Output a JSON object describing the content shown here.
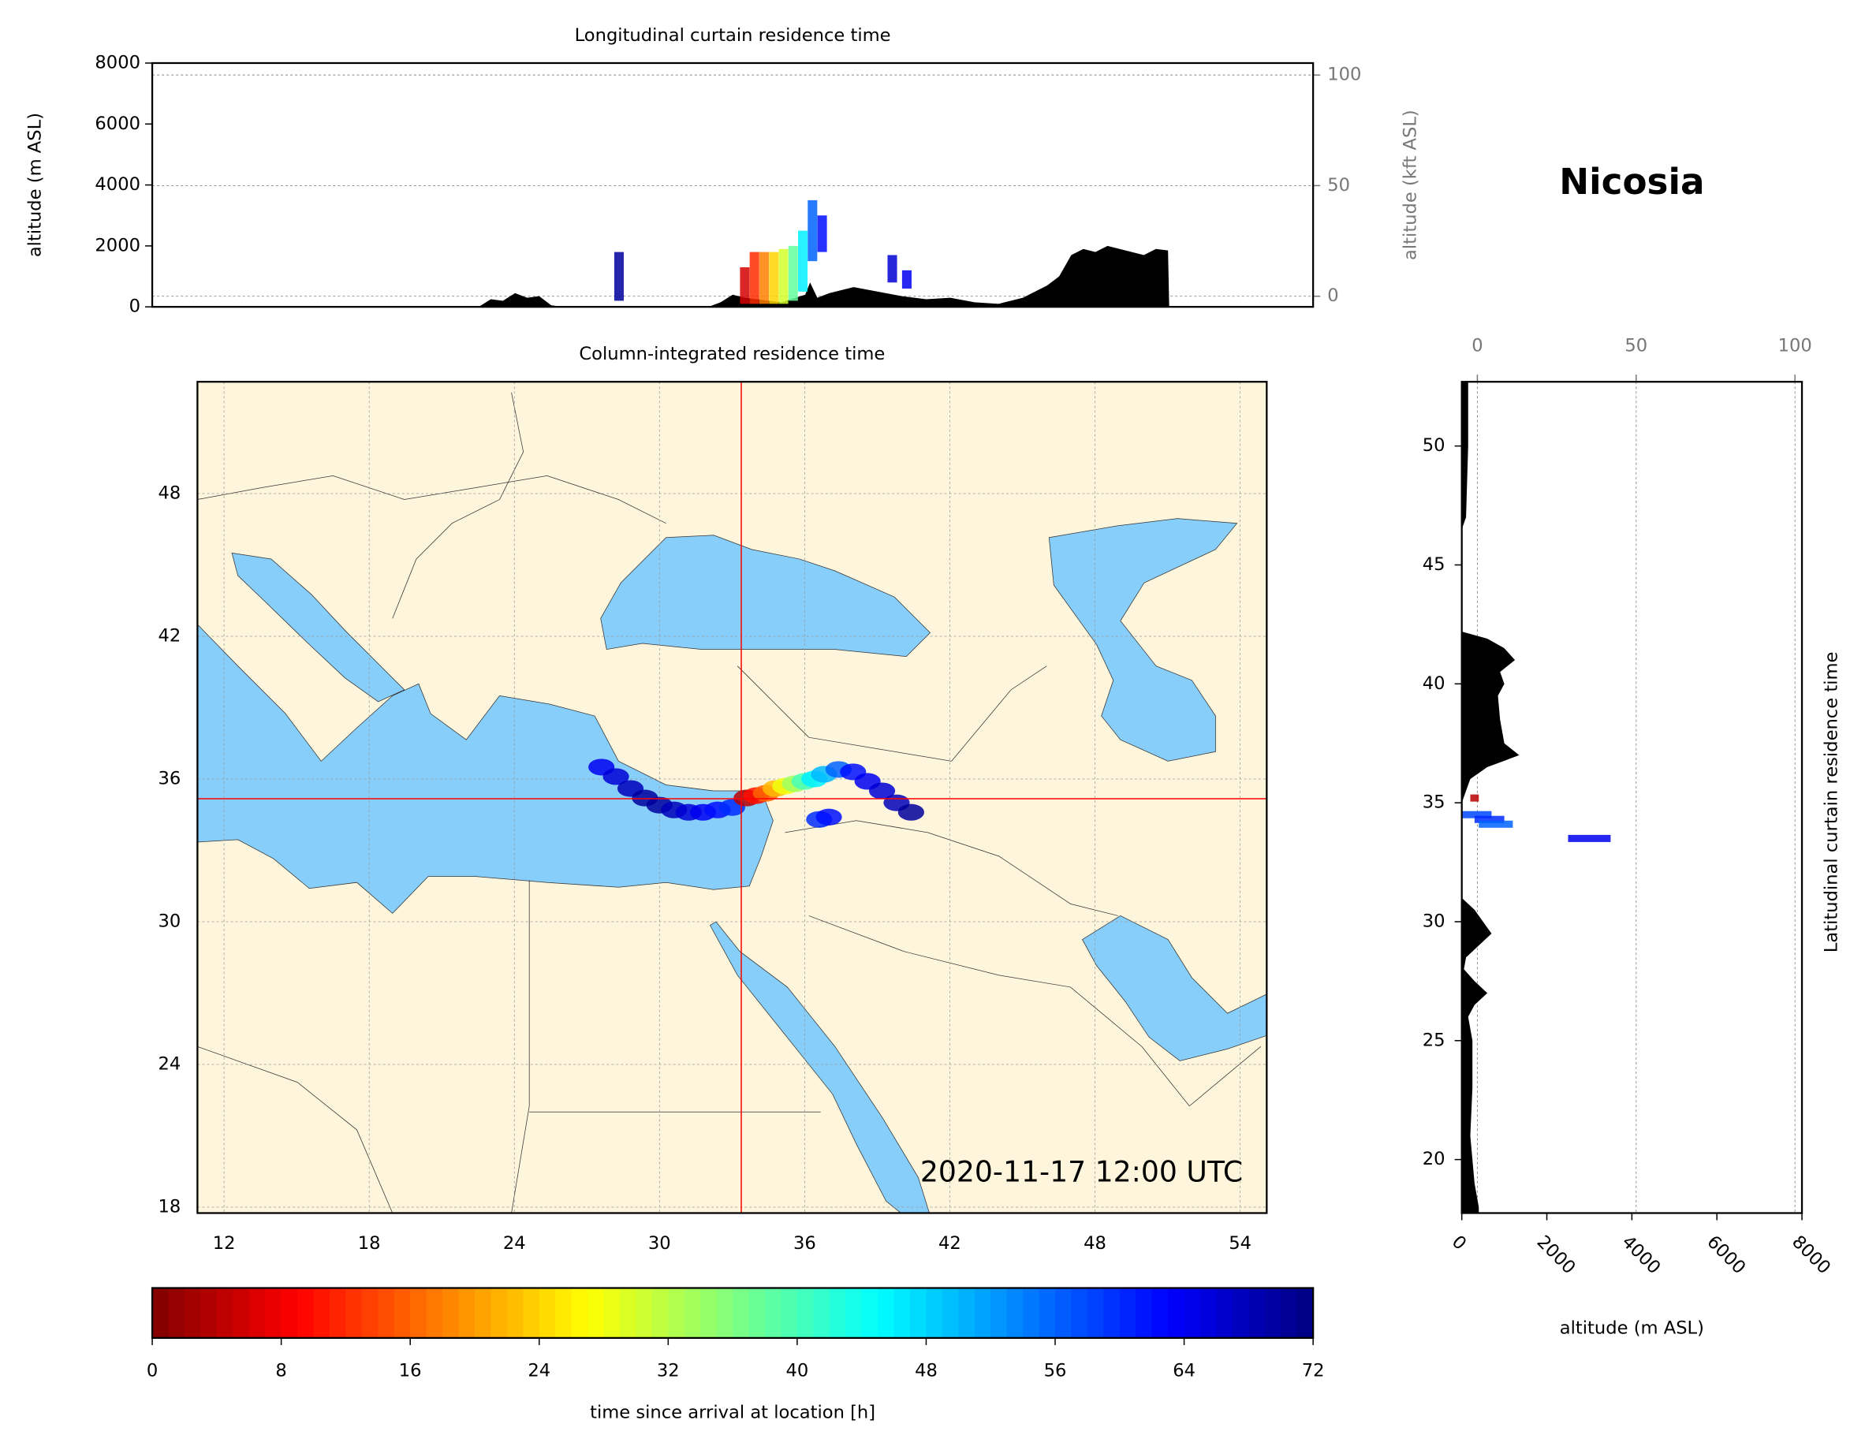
{
  "chart_data": [
    {
      "type": "curtain",
      "title": "Longitudinal curtain residence time",
      "y_label": "altitude (m ASL)",
      "y2_label": "altitude (kft ASL)",
      "xlim": [
        9,
        57
      ],
      "ylim": [
        0,
        8000
      ],
      "yticks": [
        0,
        2000,
        4000,
        6000,
        8000
      ],
      "y2lim": [
        -4.8,
        105.4
      ],
      "y2ticks": [
        0,
        50,
        100
      ],
      "grid": true,
      "terrain": {
        "color": "#000000",
        "x": [
          9,
          22.5,
          23,
          23.5,
          24,
          24.5,
          25,
          25.5,
          26,
          32,
          32.5,
          33,
          33.5,
          34,
          35,
          36,
          36.2,
          36.5,
          37,
          38,
          39,
          40,
          41,
          42,
          43,
          44,
          45,
          46,
          46.5,
          47,
          47.5,
          48,
          48.5,
          49,
          50,
          50.5,
          51,
          51.05
        ],
        "values": [
          0,
          0,
          250,
          200,
          450,
          300,
          350,
          50,
          0,
          0,
          150,
          400,
          300,
          250,
          150,
          400,
          800,
          300,
          450,
          650,
          500,
          350,
          250,
          300,
          150,
          100,
          300,
          700,
          1000,
          1700,
          1900,
          1800,
          2000,
          1900,
          1700,
          1900,
          1850,
          0
        ]
      },
      "plume": {
        "x": [
          28.3,
          33.5,
          33.9,
          34.3,
          34.7,
          35.1,
          35.5,
          35.9,
          36.3,
          36.7,
          39.6,
          40.2
        ],
        "low": [
          200,
          100,
          100,
          100,
          100,
          100,
          200,
          500,
          1500,
          1800,
          800,
          600
        ],
        "high": [
          1800,
          1300,
          1800,
          1800,
          1800,
          1900,
          2000,
          2500,
          3500,
          3000,
          1700,
          1200
        ],
        "hours": [
          70,
          6,
          12,
          18,
          24,
          30,
          38,
          46,
          56,
          62,
          66,
          64
        ]
      }
    },
    {
      "type": "map",
      "title": "Column-integrated residence time",
      "timestamp": "2020-11-17 12:00 UTC",
      "xlim": [
        10.9,
        55.1
      ],
      "ylim": [
        17.75,
        52.7
      ],
      "xticks": [
        12,
        18,
        24,
        30,
        36,
        42,
        48,
        54
      ],
      "yticks": [
        18,
        24,
        30,
        36,
        42,
        48
      ],
      "grid": true,
      "station": {
        "name": "Nicosia",
        "lon": 33.38,
        "lat": 35.17,
        "color": "#ff0000"
      },
      "plume": {
        "lon": [
          27.6,
          28.2,
          28.8,
          29.4,
          30.0,
          30.6,
          31.2,
          31.8,
          32.4,
          33.0,
          33.6,
          34.0,
          34.4,
          34.8,
          35.2,
          35.6,
          36.0,
          36.4,
          36.8,
          37.4,
          38.0,
          38.6,
          39.2,
          39.8,
          40.4,
          36.6,
          37.0
        ],
        "lat": [
          36.5,
          36.1,
          35.6,
          35.2,
          34.9,
          34.7,
          34.6,
          34.6,
          34.7,
          34.8,
          35.2,
          35.3,
          35.4,
          35.6,
          35.7,
          35.8,
          35.9,
          36.0,
          36.2,
          36.4,
          36.3,
          35.9,
          35.5,
          35.0,
          34.6,
          34.3,
          34.4
        ],
        "hours": [
          64,
          66,
          68,
          70,
          70,
          68,
          66,
          64,
          62,
          60,
          4,
          10,
          16,
          22,
          28,
          34,
          40,
          46,
          50,
          56,
          62,
          64,
          66,
          68,
          70,
          60,
          62
        ]
      }
    },
    {
      "type": "profile",
      "y_label": "Latitudinal curtain residence time",
      "x_label": "altitude (m ASL)",
      "xlim": [
        0,
        8000
      ],
      "xticks": [
        0,
        2000,
        4000,
        6000,
        8000
      ],
      "x2lim": [
        -4.9,
        102.2
      ],
      "x2ticks": [
        0,
        50,
        100
      ],
      "ylim": [
        17.75,
        52.7
      ],
      "yticks": [
        20,
        25,
        30,
        35,
        40,
        45,
        50
      ],
      "grid": true,
      "terrain": {
        "color": "#000000",
        "y": [
          52.7,
          50,
          47,
          46.5,
          42.2,
          41.9,
          41.5,
          41,
          40.5,
          40,
          39.5,
          38.5,
          37.5,
          37,
          36.5,
          36,
          35.5,
          35,
          31,
          30.5,
          30,
          29.5,
          29,
          28.5,
          28,
          27.5,
          27,
          26.5,
          26,
          25,
          23,
          21,
          19,
          18,
          17.75
        ],
        "values": [
          150,
          150,
          100,
          0,
          0,
          600,
          1000,
          1250,
          900,
          1000,
          850,
          900,
          1000,
          1350,
          600,
          200,
          100,
          0,
          0,
          300,
          500,
          700,
          400,
          100,
          50,
          300,
          600,
          300,
          150,
          250,
          250,
          200,
          300,
          400,
          400
        ]
      },
      "plume": {
        "y": [
          35.2,
          34.5,
          34.3,
          34.1,
          33.5
        ],
        "low": [
          200,
          0,
          300,
          400,
          2500
        ],
        "high": [
          400,
          700,
          1000,
          1200,
          3500
        ],
        "hours": [
          4,
          58,
          60,
          56,
          64
        ]
      }
    },
    {
      "type": "colorbar",
      "label": "time since arrival at location [h]",
      "lim": [
        0,
        72
      ],
      "ticks": [
        0,
        8,
        16,
        24,
        32,
        40,
        48,
        56,
        64,
        72
      ],
      "colormap": "jet_r"
    }
  ]
}
